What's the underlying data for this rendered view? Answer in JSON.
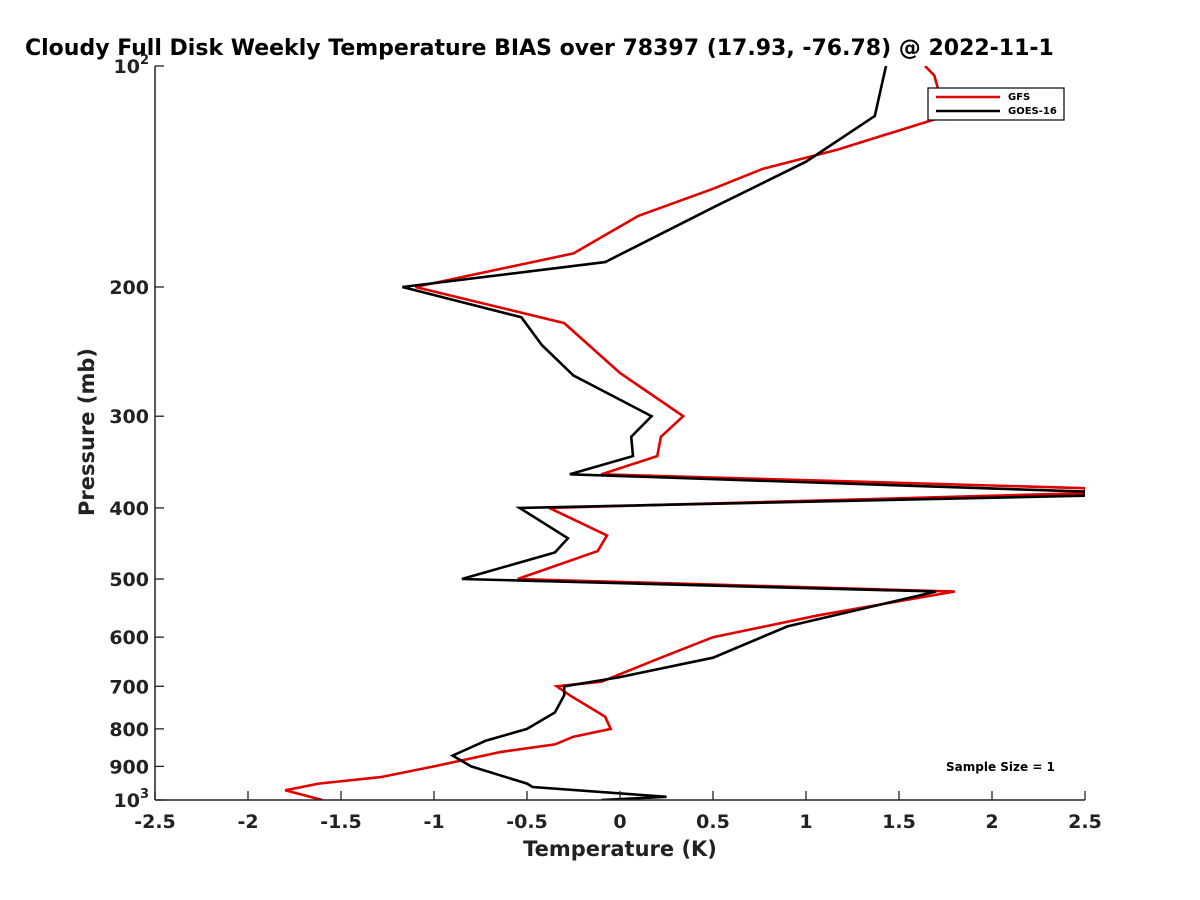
{
  "chart_data": {
    "type": "line",
    "title": "Cloudy Full Disk Weekly Temperature BIAS over 78397 (17.93, -76.78) @ 2022-11-1",
    "xlabel": "Temperature (K)",
    "ylabel": "Pressure (mb)",
    "xlim": [
      -2.5,
      2.5
    ],
    "ylim": [
      100,
      1000
    ],
    "y_scale": "log",
    "y_reversed": true,
    "x_ticks": [
      {
        "value": -2.5,
        "label": "-2.5"
      },
      {
        "value": -2,
        "label": "-2"
      },
      {
        "value": -1.5,
        "label": "-1.5"
      },
      {
        "value": -1,
        "label": "-1"
      },
      {
        "value": -0.5,
        "label": "-0.5"
      },
      {
        "value": 0,
        "label": "0"
      },
      {
        "value": 0.5,
        "label": "0.5"
      },
      {
        "value": 1,
        "label": "1"
      },
      {
        "value": 1.5,
        "label": "1.5"
      },
      {
        "value": 2,
        "label": "2"
      },
      {
        "value": 2.5,
        "label": "2.5"
      }
    ],
    "y_ticks": [
      {
        "value": 100,
        "base": "10",
        "exp": "2"
      },
      {
        "value": 200,
        "base": "200",
        "exp": ""
      },
      {
        "value": 300,
        "base": "300",
        "exp": ""
      },
      {
        "value": 400,
        "base": "400",
        "exp": ""
      },
      {
        "value": 500,
        "base": "500",
        "exp": ""
      },
      {
        "value": 600,
        "base": "600",
        "exp": ""
      },
      {
        "value": 700,
        "base": "700",
        "exp": ""
      },
      {
        "value": 800,
        "base": "800",
        "exp": ""
      },
      {
        "value": 900,
        "base": "900",
        "exp": ""
      },
      {
        "value": 1000,
        "base": "10",
        "exp": "3"
      }
    ],
    "grid": false,
    "legend_position": "top-right",
    "annotation": "Sample Size = 1",
    "series": [
      {
        "name": "GFS",
        "color": "#e00000",
        "points": [
          [
            1.64,
            100
          ],
          [
            1.69,
            103
          ],
          [
            1.75,
            117
          ],
          [
            1.17,
            130
          ],
          [
            0.77,
            138
          ],
          [
            0.5,
            147
          ],
          [
            0.1,
            160
          ],
          [
            -0.25,
            180
          ],
          [
            -1.1,
            200
          ],
          [
            -0.3,
            224
          ],
          [
            0.0,
            262
          ],
          [
            0.34,
            300
          ],
          [
            0.22,
            320
          ],
          [
            0.2,
            340
          ],
          [
            -0.1,
            360
          ],
          [
            2.5,
            376
          ],
          [
            2.5,
            382
          ],
          [
            -0.38,
            400
          ],
          [
            -0.07,
            436
          ],
          [
            -0.12,
            458
          ],
          [
            -0.55,
            500
          ],
          [
            1.8,
            520
          ],
          [
            1.07,
            560
          ],
          [
            0.5,
            600
          ],
          [
            0.22,
            640
          ],
          [
            -0.1,
            690
          ],
          [
            -0.34,
            700
          ],
          [
            -0.27,
            720
          ],
          [
            -0.08,
            770
          ],
          [
            -0.05,
            800
          ],
          [
            -0.25,
            820
          ],
          [
            -0.35,
            840
          ],
          [
            -0.64,
            860
          ],
          [
            -1.0,
            900
          ],
          [
            -1.28,
            930
          ],
          [
            -1.62,
            950
          ],
          [
            -1.8,
            970
          ],
          [
            -1.6,
            1000
          ]
        ]
      },
      {
        "name": "GOES-16",
        "color": "#000000",
        "points": [
          [
            1.43,
            100
          ],
          [
            1.37,
            117
          ],
          [
            1.0,
            135
          ],
          [
            0.52,
            155
          ],
          [
            -0.08,
            185
          ],
          [
            -1.17,
            200
          ],
          [
            -0.53,
            220
          ],
          [
            -0.42,
            240
          ],
          [
            -0.25,
            264
          ],
          [
            0.17,
            300
          ],
          [
            0.06,
            320
          ],
          [
            0.07,
            340
          ],
          [
            -0.27,
            360
          ],
          [
            2.5,
            380
          ],
          [
            2.5,
            385
          ],
          [
            -0.54,
            400
          ],
          [
            -0.28,
            440
          ],
          [
            -0.35,
            460
          ],
          [
            -0.85,
            500
          ],
          [
            1.7,
            520
          ],
          [
            0.9,
            580
          ],
          [
            0.5,
            640
          ],
          [
            0.0,
            680
          ],
          [
            -0.3,
            700
          ],
          [
            -0.3,
            720
          ],
          [
            -0.35,
            760
          ],
          [
            -0.5,
            800
          ],
          [
            -0.72,
            830
          ],
          [
            -0.9,
            870
          ],
          [
            -0.8,
            900
          ],
          [
            -0.5,
            950
          ],
          [
            -0.47,
            960
          ],
          [
            0.25,
            990
          ],
          [
            -0.1,
            1000
          ]
        ]
      }
    ]
  }
}
